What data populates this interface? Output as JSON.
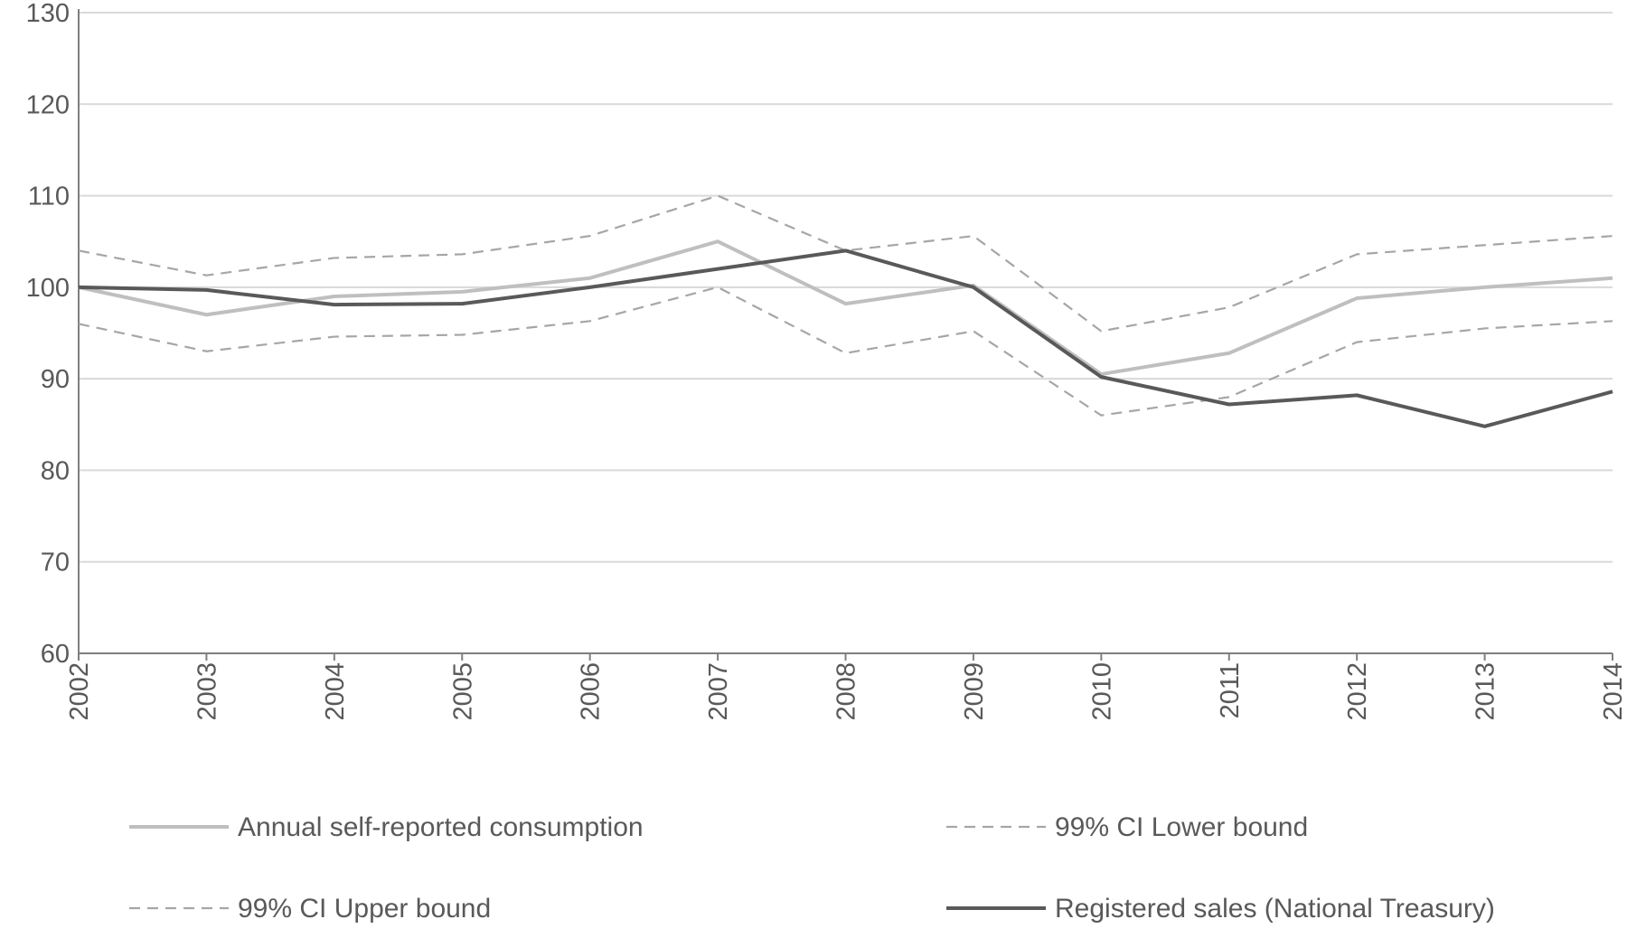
{
  "chart_data": {
    "type": "line",
    "title": "",
    "xlabel": "",
    "ylabel": "",
    "x": [
      "2002",
      "2003",
      "2004",
      "2005",
      "2006",
      "2007",
      "2008",
      "2009",
      "2010",
      "2011",
      "2012",
      "2013",
      "2014"
    ],
    "ylim": [
      60,
      130
    ],
    "yticks": [
      "60",
      "70",
      "80",
      "90",
      "100",
      "110",
      "120",
      "130"
    ],
    "grid": true,
    "legend_position": "bottom",
    "series": [
      {
        "name": "Annual self-reported  consumption",
        "style": "solid",
        "color": "#bfbfbf",
        "values": [
          100,
          97,
          99,
          99.5,
          101,
          105,
          98.2,
          100.2,
          90.5,
          92.8,
          98.8,
          100,
          101
        ]
      },
      {
        "name": "99% CI Lower bound",
        "style": "dashed",
        "color": "#a6a6a6",
        "values": [
          96,
          93,
          94.6,
          94.8,
          96.3,
          100,
          92.8,
          95.2,
          86,
          88,
          94,
          95.5,
          96.3
        ]
      },
      {
        "name": "99% CI Upper bound",
        "style": "dashed",
        "color": "#a6a6a6",
        "values": [
          104,
          101.3,
          103.2,
          103.6,
          105.6,
          110,
          104,
          105.6,
          95.2,
          97.8,
          103.6,
          104.6,
          105.6
        ]
      },
      {
        "name": "Registered sales (National Treasury)",
        "style": "solid",
        "color": "#595959",
        "values": [
          100,
          99.7,
          98.1,
          98.2,
          100,
          102,
          104,
          100,
          90.2,
          87.2,
          88.2,
          84.8,
          88.6
        ]
      }
    ]
  }
}
